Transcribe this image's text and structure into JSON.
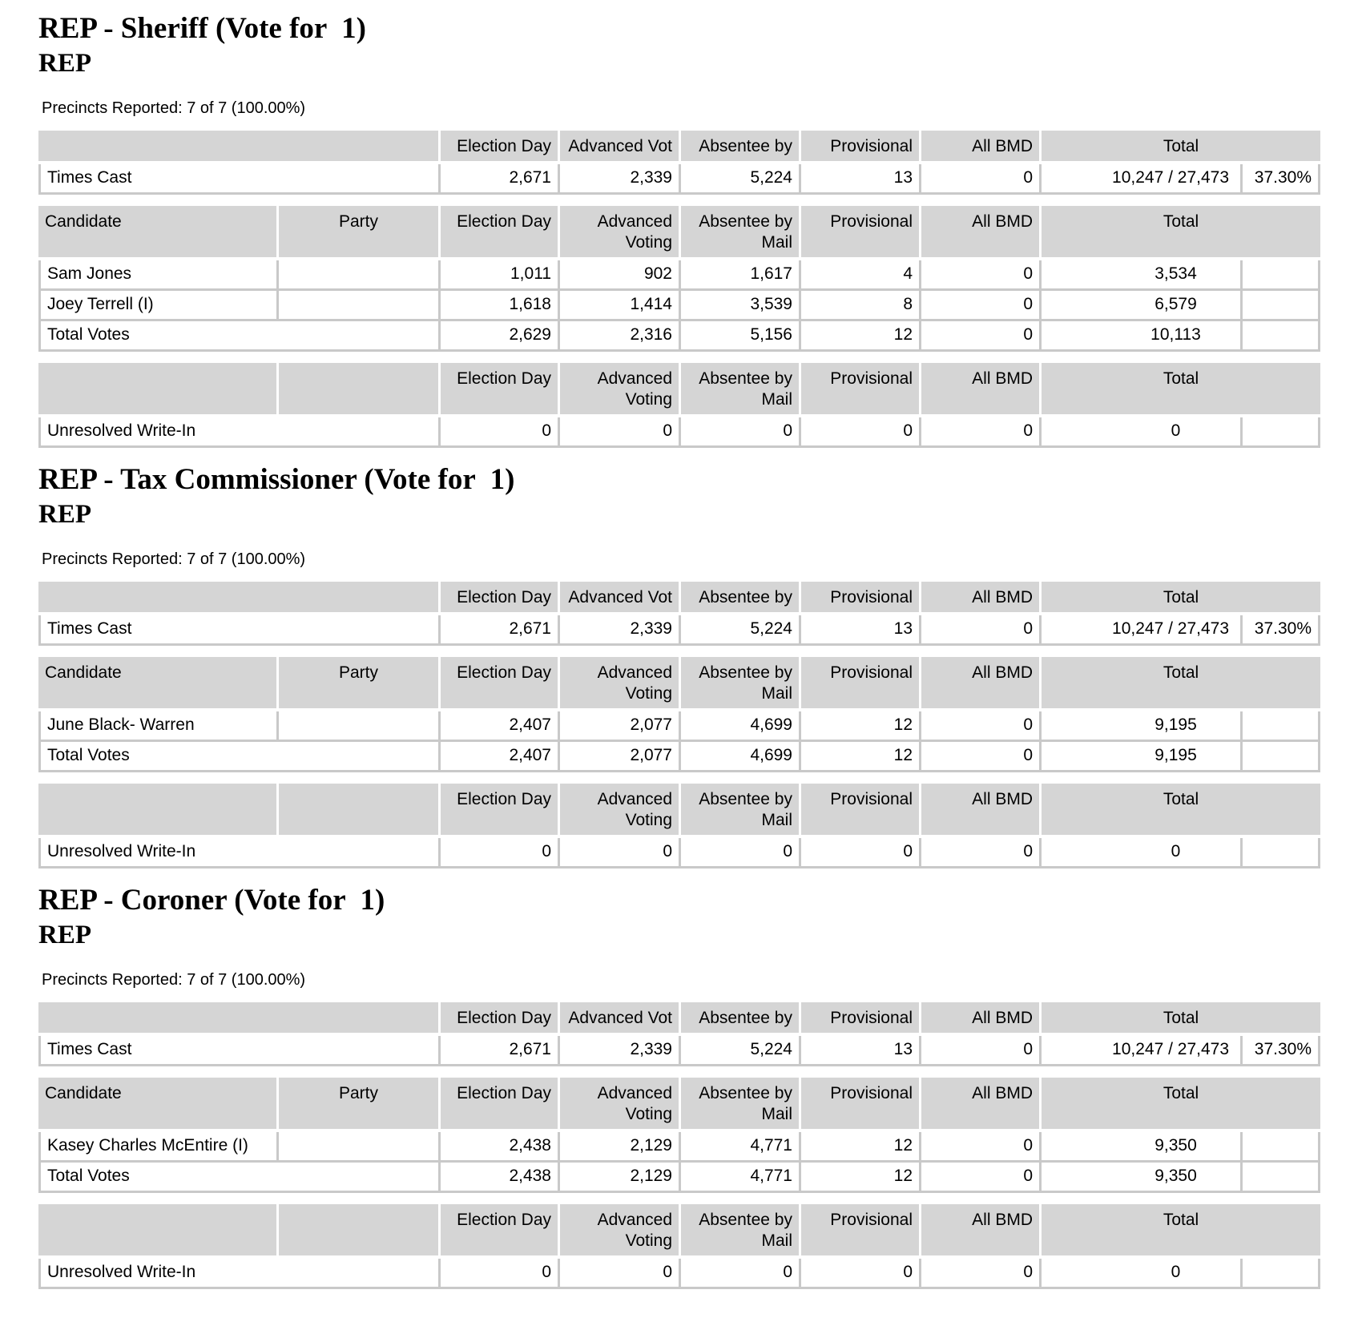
{
  "colors": {
    "header_bg": "#d5d5d5",
    "cell_border": "#c9c9c9",
    "text": "#000000",
    "page_bg": "#ffffff"
  },
  "hdr": {
    "candidate": "Candidate",
    "party": "Party",
    "election_day": "Election Day",
    "advanced_vot": "Advanced Vot",
    "absentee_by": "Absentee by",
    "advanced_voting": "Advanced Voting",
    "absentee_by_mail": "Absentee by Mail",
    "provisional": "Provisional",
    "all_bmd": "All BMD",
    "total": "Total"
  },
  "sections": [
    {
      "title": "REP - Sheriff (Vote for  1)",
      "party": "REP",
      "precincts": "Precincts Reported: 7 of 7 (100.00%)",
      "times_cast": {
        "label": "Times Cast",
        "ed": "2,671",
        "av": "2,339",
        "ab": "5,224",
        "pr": "13",
        "bmd": "0",
        "total": "10,247 / 27,473",
        "pct": "37.30%"
      },
      "rows": [
        {
          "name": "Sam Jones",
          "party": "",
          "ed": "1,011",
          "av": "902",
          "ab": "1,617",
          "pr": "4",
          "bmd": "0",
          "total": "3,534",
          "pct": ""
        },
        {
          "name": "Joey Terrell (I)",
          "party": "",
          "ed": "1,618",
          "av": "1,414",
          "ab": "3,539",
          "pr": "8",
          "bmd": "0",
          "total": "6,579",
          "pct": ""
        }
      ],
      "total_row": {
        "name": "Total Votes",
        "ed": "2,629",
        "av": "2,316",
        "ab": "5,156",
        "pr": "12",
        "bmd": "0",
        "total": "10,113",
        "pct": ""
      },
      "write_in": {
        "name": "Unresolved Write-In",
        "ed": "0",
        "av": "0",
        "ab": "0",
        "pr": "0",
        "bmd": "0",
        "total": "0",
        "pct": ""
      }
    },
    {
      "title": "REP - Tax Commissioner (Vote for  1)",
      "party": "REP",
      "precincts": "Precincts Reported: 7 of 7 (100.00%)",
      "times_cast": {
        "label": "Times Cast",
        "ed": "2,671",
        "av": "2,339",
        "ab": "5,224",
        "pr": "13",
        "bmd": "0",
        "total": "10,247 / 27,473",
        "pct": "37.30%"
      },
      "rows": [
        {
          "name": "June Black- Warren",
          "party": "",
          "ed": "2,407",
          "av": "2,077",
          "ab": "4,699",
          "pr": "12",
          "bmd": "0",
          "total": "9,195",
          "pct": ""
        }
      ],
      "total_row": {
        "name": "Total Votes",
        "ed": "2,407",
        "av": "2,077",
        "ab": "4,699",
        "pr": "12",
        "bmd": "0",
        "total": "9,195",
        "pct": ""
      },
      "write_in": {
        "name": "Unresolved Write-In",
        "ed": "0",
        "av": "0",
        "ab": "0",
        "pr": "0",
        "bmd": "0",
        "total": "0",
        "pct": ""
      }
    },
    {
      "title": "REP - Coroner (Vote for  1)",
      "party": "REP",
      "precincts": "Precincts Reported: 7 of 7 (100.00%)",
      "times_cast": {
        "label": "Times Cast",
        "ed": "2,671",
        "av": "2,339",
        "ab": "5,224",
        "pr": "13",
        "bmd": "0",
        "total": "10,247 / 27,473",
        "pct": "37.30%"
      },
      "rows": [
        {
          "name": "Kasey Charles McEntire (I)",
          "party": "",
          "ed": "2,438",
          "av": "2,129",
          "ab": "4,771",
          "pr": "12",
          "bmd": "0",
          "total": "9,350",
          "pct": ""
        }
      ],
      "total_row": {
        "name": "Total Votes",
        "ed": "2,438",
        "av": "2,129",
        "ab": "4,771",
        "pr": "12",
        "bmd": "0",
        "total": "9,350",
        "pct": ""
      },
      "write_in": {
        "name": "Unresolved Write-In",
        "ed": "0",
        "av": "0",
        "ab": "0",
        "pr": "0",
        "bmd": "0",
        "total": "0",
        "pct": ""
      }
    }
  ]
}
